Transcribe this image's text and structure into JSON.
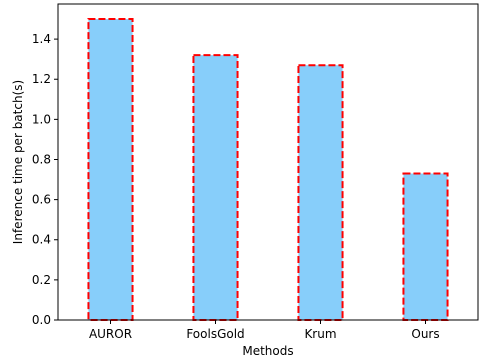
{
  "chart_data": {
    "type": "bar",
    "title": "",
    "xlabel": "Methods",
    "ylabel": "Inference time per batch(s)",
    "categories": [
      "AUROR",
      "FoolsGold",
      "Krum",
      "Ours"
    ],
    "values": [
      1.5,
      1.32,
      1.27,
      0.73
    ],
    "ylim": [
      0,
      1.575
    ],
    "yticks": [
      "0.0",
      "0.2",
      "0.4",
      "0.6",
      "0.8",
      "1.0",
      "1.2",
      "1.4"
    ],
    "grid": false,
    "bar_fill_color": "#87CEFA",
    "bar_edge_color": "#FF0000",
    "bar_edge_style": "dashed"
  }
}
